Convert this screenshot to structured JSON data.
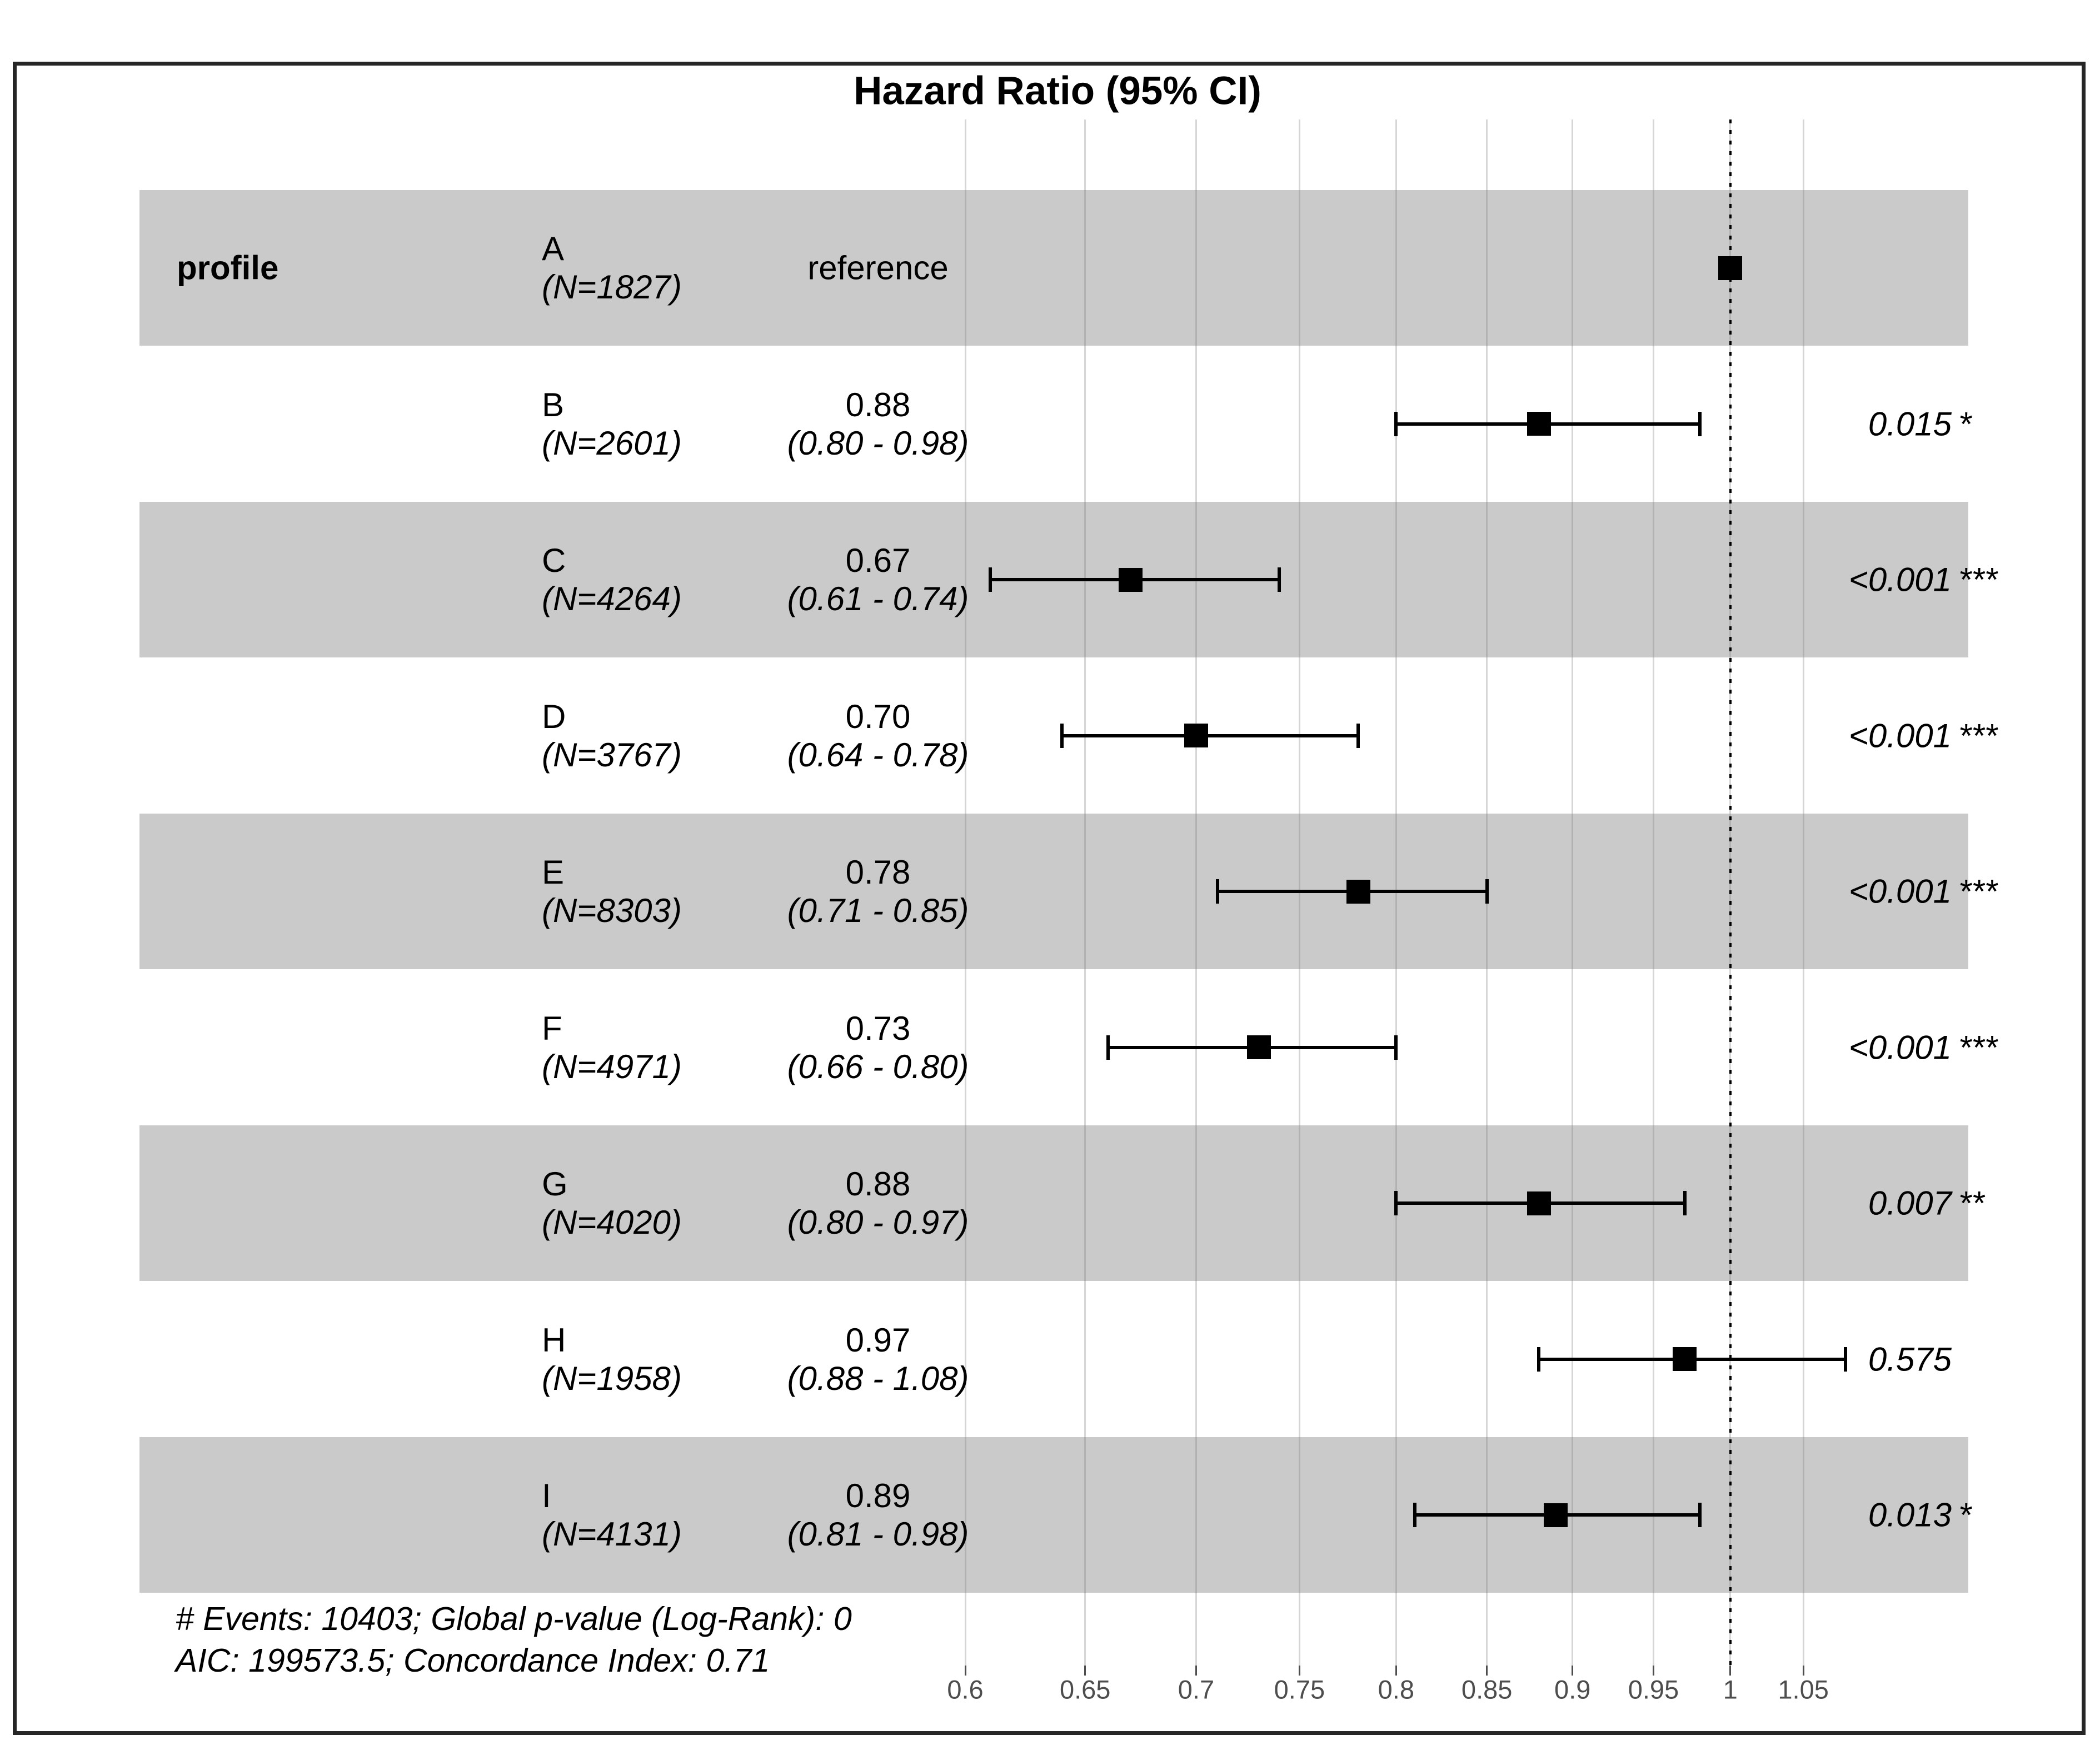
{
  "title": "Hazard Ratio (95% CI)",
  "covariate": {
    "name": "profile"
  },
  "axis": {
    "scale": "log",
    "ticks": [
      {
        "label": "0.6",
        "value": 0.6
      },
      {
        "label": "0.65",
        "value": 0.65
      },
      {
        "label": "0.7",
        "value": 0.7
      },
      {
        "label": "0.75",
        "value": 0.75
      },
      {
        "label": "0.8",
        "value": 0.8
      },
      {
        "label": "0.85",
        "value": 0.85
      },
      {
        "label": "0.9",
        "value": 0.9
      },
      {
        "label": "0.95",
        "value": 0.95
      },
      {
        "label": "1",
        "value": 1
      },
      {
        "label": "1.05",
        "value": 1.05
      }
    ],
    "reference_value": 1
  },
  "rows": [
    {
      "level": "A",
      "n_label": "(N=1827)",
      "estimate_label": "reference",
      "ci_label": "",
      "p_label": "",
      "stars": "",
      "hr": 1.0,
      "lo": null,
      "hi": null,
      "shaded": true
    },
    {
      "level": "B",
      "n_label": "(N=2601)",
      "estimate_label": "0.88",
      "ci_label": "(0.80 - 0.98)",
      "p_label": "0.015",
      "stars": "*",
      "hr": 0.88,
      "lo": 0.8,
      "hi": 0.98,
      "shaded": false
    },
    {
      "level": "C",
      "n_label": "(N=4264)",
      "estimate_label": "0.67",
      "ci_label": "(0.61 - 0.74)",
      "p_label": "<0.001",
      "stars": "***",
      "hr": 0.67,
      "lo": 0.61,
      "hi": 0.74,
      "shaded": true
    },
    {
      "level": "D",
      "n_label": "(N=3767)",
      "estimate_label": "0.70",
      "ci_label": "(0.64 - 0.78)",
      "p_label": "<0.001",
      "stars": "***",
      "hr": 0.7,
      "lo": 0.64,
      "hi": 0.78,
      "shaded": false
    },
    {
      "level": "E",
      "n_label": "(N=8303)",
      "estimate_label": "0.78",
      "ci_label": "(0.71 - 0.85)",
      "p_label": "<0.001",
      "stars": "***",
      "hr": 0.78,
      "lo": 0.71,
      "hi": 0.85,
      "shaded": true
    },
    {
      "level": "F",
      "n_label": "(N=4971)",
      "estimate_label": "0.73",
      "ci_label": "(0.66 - 0.80)",
      "p_label": "<0.001",
      "stars": "***",
      "hr": 0.73,
      "lo": 0.66,
      "hi": 0.8,
      "shaded": false
    },
    {
      "level": "G",
      "n_label": "(N=4020)",
      "estimate_label": "0.88",
      "ci_label": "(0.80 - 0.97)",
      "p_label": "0.007",
      "stars": "**",
      "hr": 0.88,
      "lo": 0.8,
      "hi": 0.97,
      "shaded": true
    },
    {
      "level": "H",
      "n_label": "(N=1958)",
      "estimate_label": "0.97",
      "ci_label": "(0.88 - 1.08)",
      "p_label": "0.575",
      "stars": "",
      "hr": 0.97,
      "lo": 0.88,
      "hi": 1.08,
      "shaded": false
    },
    {
      "level": "I",
      "n_label": "(N=4131)",
      "estimate_label": "0.89",
      "ci_label": "(0.81 - 0.98)",
      "p_label": "0.013",
      "stars": "*",
      "hr": 0.89,
      "lo": 0.81,
      "hi": 0.98,
      "shaded": true
    }
  ],
  "footer": {
    "line1": "# Events: 10403; Global p-value (Log-Rank): 0",
    "line2": "AIC: 199573.5; Concordance Index: 0.71"
  },
  "colors": {
    "band": "#cacaca",
    "marker": "#000000",
    "border": "#262626",
    "tick_text": "#4d4d4d"
  },
  "chart_data": {
    "type": "forest",
    "title": "Hazard Ratio (95% CI)",
    "x_scale": "log",
    "x_ticks": [
      0.6,
      0.65,
      0.7,
      0.75,
      0.8,
      0.85,
      0.9,
      0.95,
      1,
      1.05
    ],
    "x_range": [
      0.6,
      1.05
    ],
    "reference_line": 1,
    "grid": "vertical-on",
    "covariate": "profile",
    "rows": [
      {
        "level": "A",
        "n": 1827,
        "hr": 1.0,
        "ci_low": null,
        "ci_high": null,
        "estimate_text": "reference",
        "p_value": null,
        "significance": ""
      },
      {
        "level": "B",
        "n": 2601,
        "hr": 0.88,
        "ci_low": 0.8,
        "ci_high": 0.98,
        "estimate_text": "0.88",
        "p_value": "0.015",
        "significance": "*"
      },
      {
        "level": "C",
        "n": 4264,
        "hr": 0.67,
        "ci_low": 0.61,
        "ci_high": 0.74,
        "estimate_text": "0.67",
        "p_value": "<0.001",
        "significance": "***"
      },
      {
        "level": "D",
        "n": 3767,
        "hr": 0.7,
        "ci_low": 0.64,
        "ci_high": 0.78,
        "estimate_text": "0.70",
        "p_value": "<0.001",
        "significance": "***"
      },
      {
        "level": "E",
        "n": 8303,
        "hr": 0.78,
        "ci_low": 0.71,
        "ci_high": 0.85,
        "estimate_text": "0.78",
        "p_value": "<0.001",
        "significance": "***"
      },
      {
        "level": "F",
        "n": 4971,
        "hr": 0.73,
        "ci_low": 0.66,
        "ci_high": 0.8,
        "estimate_text": "0.73",
        "p_value": "<0.001",
        "significance": "***"
      },
      {
        "level": "G",
        "n": 4020,
        "hr": 0.88,
        "ci_low": 0.8,
        "ci_high": 0.97,
        "estimate_text": "0.88",
        "p_value": "0.007",
        "significance": "**"
      },
      {
        "level": "H",
        "n": 1958,
        "hr": 0.97,
        "ci_low": 0.88,
        "ci_high": 1.08,
        "estimate_text": "0.97",
        "p_value": "0.575",
        "significance": ""
      },
      {
        "level": "I",
        "n": 4131,
        "hr": 0.89,
        "ci_low": 0.81,
        "ci_high": 0.98,
        "estimate_text": "0.89",
        "p_value": "0.013",
        "significance": "*"
      }
    ],
    "annotations": [
      "# Events: 10403; Global p-value (Log-Rank): 0",
      "AIC: 199573.5; Concordance Index: 0.71"
    ]
  }
}
